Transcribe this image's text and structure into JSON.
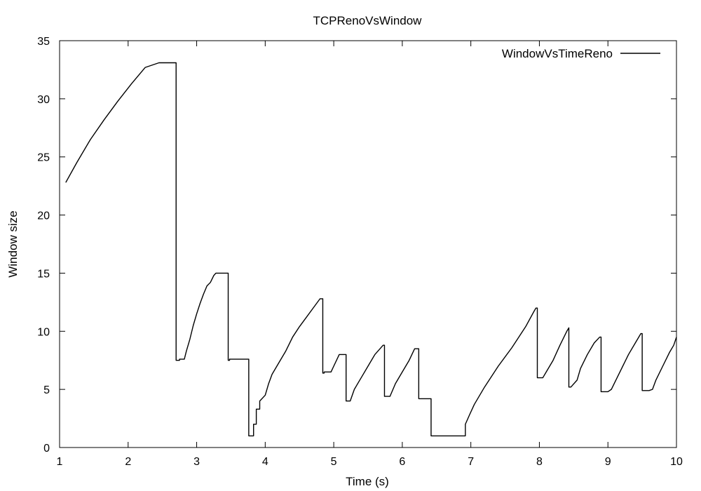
{
  "chart_data": {
    "type": "line",
    "title": "TCPRenoVsWindow",
    "xlabel": "Time (s)",
    "ylabel": "Window size",
    "xlim": [
      1,
      10
    ],
    "ylim": [
      0,
      35
    ],
    "xticks": [
      1,
      2,
      3,
      4,
      5,
      6,
      7,
      8,
      9,
      10
    ],
    "yticks": [
      0,
      5,
      10,
      15,
      20,
      25,
      30,
      35
    ],
    "grid": false,
    "legend_position": "top-right",
    "series": [
      {
        "name": "WindowVsTimeReno",
        "color": "#000000",
        "x": [
          1.09,
          1.25,
          1.45,
          1.65,
          1.85,
          2.05,
          2.25,
          2.45,
          2.6,
          2.68,
          2.69,
          2.7,
          2.7,
          2.75,
          2.75,
          2.82,
          2.85,
          2.9,
          2.95,
          3.0,
          3.05,
          3.1,
          3.15,
          3.2,
          3.25,
          3.28,
          3.33,
          3.35,
          3.4,
          3.46,
          3.46,
          3.48,
          3.48,
          3.56,
          3.56,
          3.76,
          3.76,
          3.8,
          3.8,
          3.83,
          3.83,
          3.87,
          3.87,
          3.92,
          3.92,
          4.0,
          4.05,
          4.1,
          4.2,
          4.3,
          4.4,
          4.5,
          4.6,
          4.7,
          4.8,
          4.84,
          4.84,
          4.86,
          4.86,
          4.96,
          5.0,
          5.08,
          5.08,
          5.12,
          5.12,
          5.18,
          5.18,
          5.24,
          5.24,
          5.3,
          5.4,
          5.5,
          5.6,
          5.72,
          5.72,
          5.74,
          5.74,
          5.8,
          5.82,
          5.9,
          6.0,
          6.1,
          6.18,
          6.22,
          6.22,
          6.24,
          6.24,
          6.42,
          6.42,
          6.88,
          6.88,
          6.92,
          6.92,
          6.98,
          7.05,
          7.2,
          7.4,
          7.6,
          7.8,
          7.92,
          7.95,
          7.95,
          7.97,
          7.97,
          8.05,
          8.1,
          8.2,
          8.3,
          8.4,
          8.43,
          8.43,
          8.46,
          8.46,
          8.55,
          8.6,
          8.7,
          8.8,
          8.88,
          8.88,
          8.9,
          8.9,
          9.0,
          9.05,
          9.1,
          9.2,
          9.3,
          9.4,
          9.48,
          9.48,
          9.5,
          9.5,
          9.6,
          9.65,
          9.7,
          9.8,
          9.9,
          9.96,
          10.0
        ],
        "y": [
          22.8,
          24.5,
          26.5,
          28.2,
          29.8,
          31.3,
          32.7,
          33.1,
          33.1,
          33.1,
          33.1,
          33.1,
          7.5,
          7.5,
          7.6,
          7.6,
          8.3,
          9.3,
          10.5,
          11.5,
          12.4,
          13.2,
          13.9,
          14.2,
          14.8,
          15.0,
          15.0,
          15.0,
          15.0,
          15.0,
          7.5,
          7.5,
          7.6,
          7.6,
          7.6,
          7.6,
          1.0,
          1.0,
          1.0,
          1.0,
          2.0,
          2.0,
          3.3,
          3.3,
          4.0,
          4.5,
          5.5,
          6.3,
          7.3,
          8.3,
          9.5,
          10.4,
          11.2,
          12.0,
          12.8,
          12.8,
          6.4,
          6.4,
          6.5,
          6.5,
          7.0,
          8.0,
          8.0,
          8.0,
          8.0,
          8.0,
          4.0,
          4.0,
          4.0,
          5.0,
          6.0,
          7.0,
          8.0,
          8.8,
          8.8,
          8.8,
          4.4,
          4.4,
          4.4,
          5.5,
          6.5,
          7.5,
          8.5,
          8.5,
          8.5,
          8.5,
          4.2,
          4.2,
          1.0,
          1.0,
          1.0,
          1.0,
          2.0,
          2.8,
          3.7,
          5.2,
          7.0,
          8.6,
          10.4,
          11.7,
          12.0,
          12.0,
          12.0,
          6.0,
          6.0,
          6.5,
          7.5,
          8.8,
          10.0,
          10.3,
          5.2,
          5.2,
          5.2,
          5.8,
          6.8,
          8.0,
          9.0,
          9.5,
          9.5,
          9.5,
          4.8,
          4.8,
          5.0,
          5.6,
          6.8,
          8.0,
          9.0,
          9.8,
          9.8,
          9.8,
          4.9,
          4.9,
          5.0,
          5.8,
          7.0,
          8.2,
          8.8,
          9.5
        ]
      }
    ]
  }
}
